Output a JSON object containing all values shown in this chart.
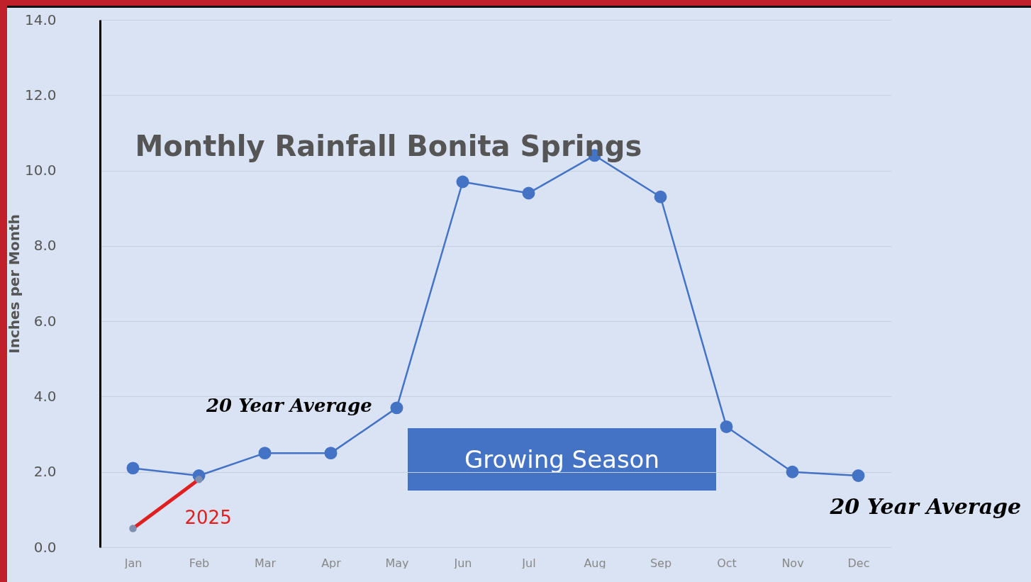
{
  "chart_data": {
    "type": "line",
    "title": "Monthly Rainfall Bonita Springs",
    "ylabel": "Inches per Month",
    "categories": [
      "Jan",
      "Feb",
      "Mar",
      "Apr",
      "May",
      "Jun",
      "Jul",
      "Aug",
      "Sep",
      "Oct",
      "Nov",
      "Dec"
    ],
    "series": [
      {
        "name": "20 Year Average",
        "color": "#4472c4",
        "values": [
          2.1,
          1.9,
          2.5,
          2.5,
          3.7,
          9.7,
          9.4,
          10.4,
          9.3,
          3.2,
          2.0,
          1.9
        ]
      },
      {
        "name": "2025",
        "color": "#e02020",
        "values": [
          0.5,
          1.8,
          null,
          null,
          null,
          null,
          null,
          null,
          null,
          null,
          null,
          null
        ]
      }
    ],
    "ylim": [
      0,
      14
    ],
    "yticks": [
      {
        "value": 0,
        "label": "0.0"
      },
      {
        "value": 2,
        "label": "2.0"
      },
      {
        "value": 4,
        "label": "4.0"
      },
      {
        "value": 6,
        "label": "6.0"
      },
      {
        "value": 8,
        "label": "8.0"
      },
      {
        "value": 10,
        "label": "10.0"
      },
      {
        "value": 12,
        "label": "12.0"
      },
      {
        "value": 14,
        "label": "14.0"
      }
    ],
    "grid": "y",
    "marker": "circle",
    "line_style": "solid",
    "annotations": [
      "20 Year Average",
      "Growing Season"
    ]
  }
}
